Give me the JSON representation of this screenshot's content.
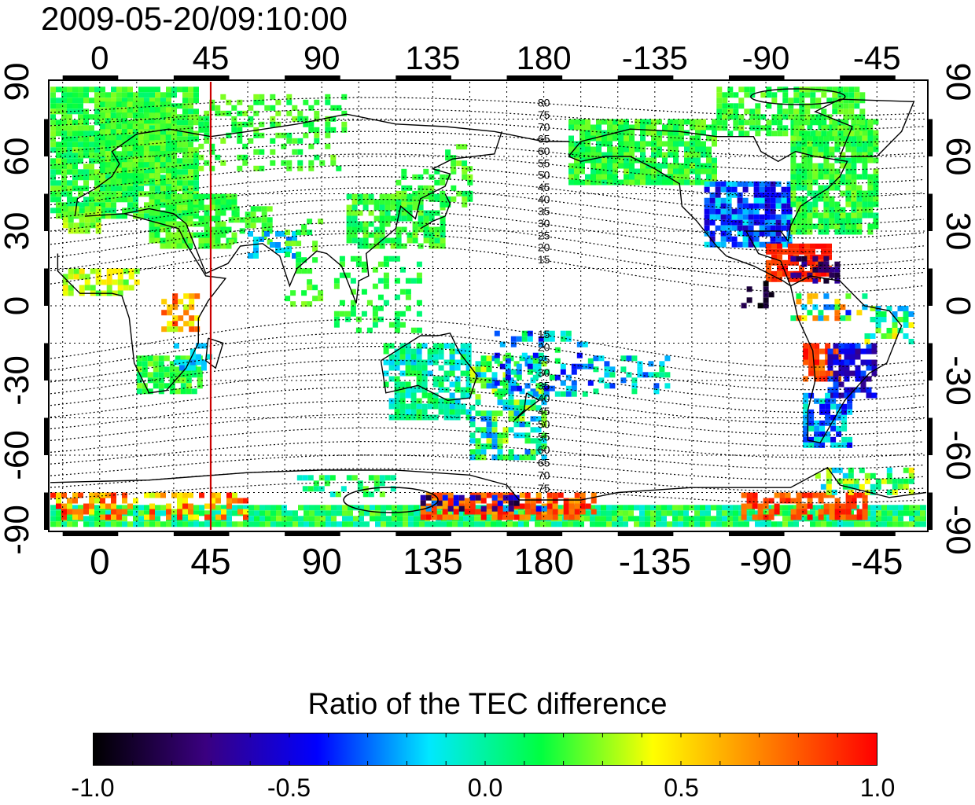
{
  "title": "2009-05-20/09:10:00",
  "map": {
    "x_ticks": [
      "0",
      "45",
      "90",
      "135",
      "180",
      "-135",
      "-90",
      "-45"
    ],
    "y_ticks": [
      "90",
      "60",
      "30",
      "0",
      "-30",
      "-60",
      "-90"
    ],
    "lon_range": [
      -20,
      335
    ],
    "lat_range": [
      -90,
      90
    ],
    "grid": true,
    "marked_meridian_lon": 45,
    "marked_meridian_color": "#cc0000",
    "contour_labels_north": [
      "80",
      "75",
      "70",
      "65",
      "60",
      "55",
      "50",
      "45",
      "40",
      "35",
      "30",
      "25",
      "20",
      "15"
    ],
    "contour_labels_south": [
      "15",
      "20",
      "25",
      "30",
      "35",
      "40",
      "45",
      "50",
      "55",
      "60",
      "65",
      "70",
      "75"
    ]
  },
  "colorbar": {
    "title": "Ratio of the TEC difference",
    "tick_labels": [
      "-1.0",
      "-0.5",
      "0.0",
      "0.5",
      "1.0"
    ],
    "range": [
      -1.0,
      1.0
    ],
    "colormap": [
      "#000000",
      "#3a0080",
      "#0000ff",
      "#00e8ff",
      "#00ff40",
      "#ffff00",
      "#ff8000",
      "#ff0000"
    ]
  }
}
